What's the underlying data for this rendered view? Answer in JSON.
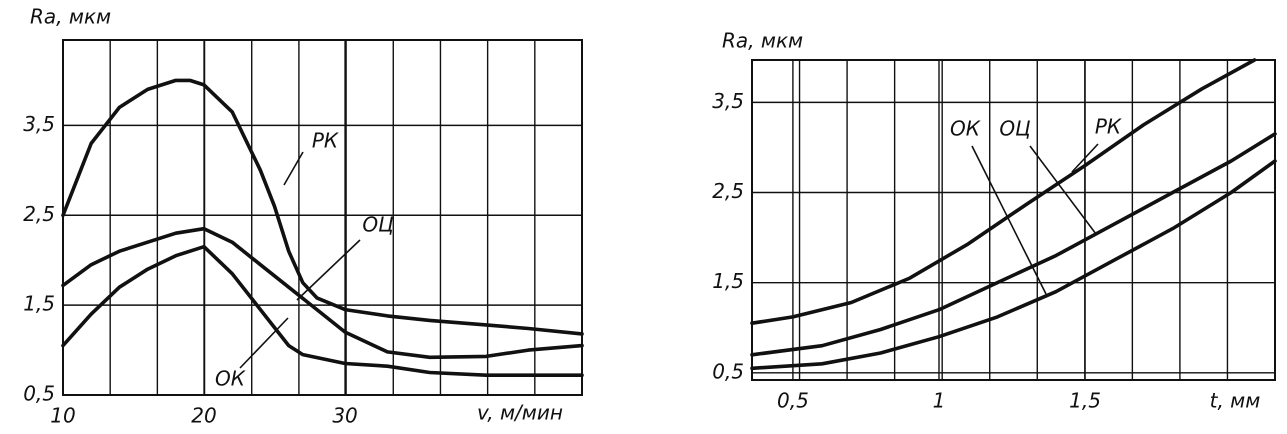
{
  "chart_data": [
    {
      "type": "line",
      "y_label": "Ra, мкм",
      "x_label": "v, м/мин",
      "xlim": [
        10,
        46.8
      ],
      "ylim": [
        0.5,
        4.45
      ],
      "xticks": [
        10,
        20,
        30
      ],
      "yticks": [
        {
          "value": 0.5,
          "label": "0,5"
        },
        {
          "value": 1.5,
          "label": "1,5"
        },
        {
          "value": 2.5,
          "label": "2,5"
        },
        {
          "value": 3.5,
          "label": "3,5"
        }
      ],
      "grid": true,
      "series": [
        {
          "name": "РК",
          "color": "#111",
          "x": [
            10,
            12,
            14,
            16,
            18,
            19,
            20,
            22,
            24,
            25,
            26,
            27,
            28,
            30,
            33,
            36,
            40,
            43,
            46.8
          ],
          "values": [
            2.5,
            3.3,
            3.7,
            3.9,
            4.0,
            4.0,
            3.95,
            3.65,
            3.0,
            2.6,
            2.1,
            1.75,
            1.58,
            1.45,
            1.38,
            1.33,
            1.28,
            1.24,
            1.18
          ]
        },
        {
          "name": "ОЦ",
          "color": "#111",
          "x": [
            10,
            12,
            14,
            16,
            18,
            20,
            22,
            24,
            26,
            28,
            30,
            33,
            36,
            40,
            43,
            46.8
          ],
          "values": [
            1.72,
            1.95,
            2.1,
            2.2,
            2.3,
            2.35,
            2.2,
            1.95,
            1.7,
            1.45,
            1.2,
            0.98,
            0.92,
            0.93,
            1.0,
            1.05
          ]
        },
        {
          "name": "ОК",
          "color": "#111",
          "x": [
            10,
            12,
            14,
            16,
            18,
            20,
            22,
            24,
            26,
            27,
            30,
            33,
            36,
            40,
            46.8
          ],
          "values": [
            1.05,
            1.4,
            1.7,
            1.9,
            2.05,
            2.15,
            1.85,
            1.45,
            1.05,
            0.95,
            0.85,
            0.82,
            0.75,
            0.72,
            0.72
          ]
        }
      ]
    },
    {
      "type": "line",
      "y_label": "Ra, мкм",
      "x_label": "t, мм",
      "xlim": [
        0.36,
        2.15
      ],
      "ylim": [
        0.42,
        3.97
      ],
      "xticks": [
        {
          "value": 0.5,
          "label": "0,5"
        },
        1,
        {
          "value": 1.5,
          "label": "1,5"
        }
      ],
      "yticks": [
        {
          "value": 0.5,
          "label": "0,5"
        },
        {
          "value": 1.5,
          "label": "1,5"
        },
        {
          "value": 2.5,
          "label": "2,5"
        },
        {
          "value": 3.5,
          "label": "3,5"
        }
      ],
      "grid": true,
      "series": [
        {
          "name": "ОК",
          "color": "#111",
          "x": [
            0.36,
            0.6,
            0.8,
            1.0,
            1.2,
            1.4,
            1.6,
            1.8,
            2.0,
            2.15
          ],
          "values": [
            0.55,
            0.6,
            0.72,
            0.9,
            1.12,
            1.4,
            1.75,
            2.1,
            2.5,
            2.85
          ]
        },
        {
          "name": "ОЦ",
          "color": "#111",
          "x": [
            0.36,
            0.6,
            0.8,
            1.0,
            1.2,
            1.4,
            1.6,
            1.8,
            2.0,
            2.15
          ],
          "values": [
            0.7,
            0.8,
            0.98,
            1.2,
            1.5,
            1.8,
            2.15,
            2.5,
            2.85,
            3.15
          ]
        },
        {
          "name": "РК",
          "color": "#111",
          "x": [
            0.36,
            0.5,
            0.7,
            0.9,
            1.1,
            1.3,
            1.5,
            1.7,
            1.9,
            2.08
          ],
          "values": [
            1.05,
            1.12,
            1.28,
            1.55,
            1.93,
            2.37,
            2.8,
            3.25,
            3.65,
            3.97
          ]
        }
      ]
    }
  ]
}
